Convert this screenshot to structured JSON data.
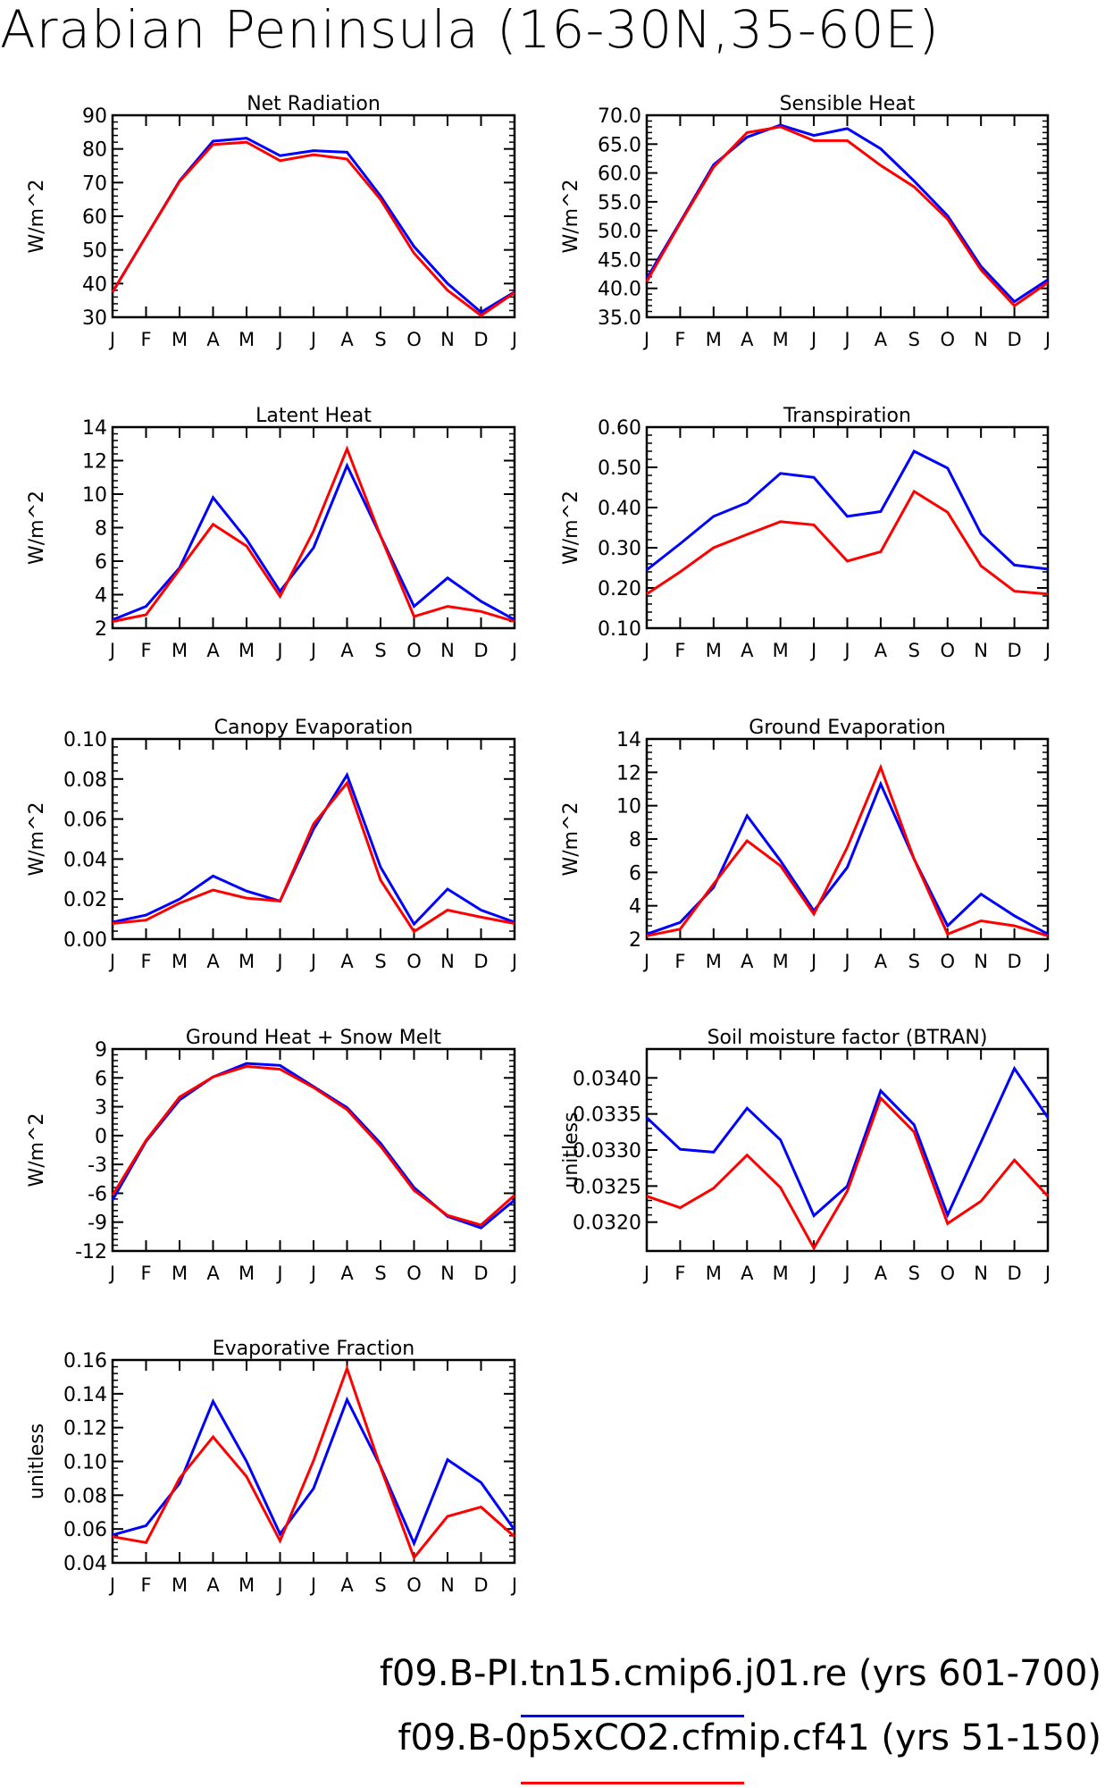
{
  "title": "Arabian Peninsula (16-30N,35-60E)",
  "month_labels": [
    "J",
    "F",
    "M",
    "A",
    "M",
    "J",
    "J",
    "A",
    "S",
    "O",
    "N",
    "D",
    "J"
  ],
  "legend": {
    "entries": [
      {
        "label": "f09.B-PI.tn15.cmip6.j01.re (yrs 601-700)",
        "color": "#0000ff"
      },
      {
        "label": "f09.B-0p5xCO2.cfmip.cf41 (yrs 51-150)",
        "color": "#ff0000"
      }
    ]
  },
  "chart_data": [
    {
      "type": "line",
      "title": "Net Radiation",
      "ylabel": "W/m^2",
      "ylim": [
        30,
        90
      ],
      "yticks": [
        30,
        40,
        50,
        60,
        70,
        80,
        90
      ],
      "ytick_labels": [
        "30",
        "40",
        "50",
        "60",
        "70",
        "80",
        "90"
      ],
      "x": [
        "J",
        "F",
        "M",
        "A",
        "M",
        "J",
        "J",
        "A",
        "S",
        "O",
        "N",
        "D",
        "J"
      ],
      "series": [
        {
          "name": "f09.B-PI.tn15.cmip6.j01.re",
          "color": "#0000ff",
          "values": [
            37.5,
            54,
            70.5,
            82.3,
            83.2,
            78,
            79.5,
            79,
            66,
            51,
            40,
            31.5,
            37.5
          ]
        },
        {
          "name": "f09.B-0p5xCO2.cfmip.cf41",
          "color": "#ff0000",
          "values": [
            37.5,
            54,
            70.3,
            81.3,
            82,
            76.5,
            78.3,
            77,
            65,
            49,
            38,
            30.5,
            37.3
          ]
        }
      ]
    },
    {
      "type": "line",
      "title": "Sensible Heat",
      "ylabel": "W/m^2",
      "ylim": [
        35,
        70
      ],
      "yticks": [
        35,
        40,
        45,
        50,
        55,
        60,
        65,
        70
      ],
      "ytick_labels": [
        "35.0",
        "40.0",
        "45.0",
        "50.0",
        "55.0",
        "60.0",
        "65.0",
        "70.0"
      ],
      "x": [
        "J",
        "F",
        "M",
        "A",
        "M",
        "J",
        "J",
        "A",
        "S",
        "O",
        "N",
        "D",
        "J"
      ],
      "series": [
        {
          "name": "f09.B-PI.tn15.cmip6.j01.re",
          "color": "#0000ff",
          "values": [
            41.7,
            51.5,
            61.4,
            66.2,
            68.3,
            66.5,
            67.7,
            64.2,
            58.6,
            52.6,
            43.8,
            37.7,
            41.5
          ]
        },
        {
          "name": "f09.B-0p5xCO2.cfmip.cf41",
          "color": "#ff0000",
          "values": [
            41.2,
            51.3,
            61,
            67,
            68,
            65.6,
            65.6,
            61.3,
            57.6,
            52,
            43.2,
            37,
            41
          ]
        }
      ]
    },
    {
      "type": "line",
      "title": "Latent Heat",
      "ylabel": "W/m^2",
      "ylim": [
        2,
        14
      ],
      "yticks": [
        2,
        4,
        6,
        8,
        10,
        12,
        14
      ],
      "ytick_labels": [
        "2",
        "4",
        "6",
        "8",
        "10",
        "12",
        "14"
      ],
      "x": [
        "J",
        "F",
        "M",
        "A",
        "M",
        "J",
        "J",
        "A",
        "S",
        "O",
        "N",
        "D",
        "J"
      ],
      "series": [
        {
          "name": "f09.B-PI.tn15.cmip6.j01.re",
          "color": "#0000ff",
          "values": [
            2.5,
            3.3,
            5.6,
            9.8,
            7.3,
            4.2,
            6.8,
            11.7,
            7.5,
            3.3,
            5,
            3.6,
            2.5
          ]
        },
        {
          "name": "f09.B-0p5xCO2.cfmip.cf41",
          "color": "#ff0000",
          "values": [
            2.4,
            2.8,
            5.5,
            8.2,
            6.9,
            3.9,
            7.8,
            12.7,
            7.5,
            2.7,
            3.3,
            3,
            2.4
          ]
        }
      ]
    },
    {
      "type": "line",
      "title": "Transpiration",
      "ylabel": "W/m^2",
      "ylim": [
        0.1,
        0.6
      ],
      "yticks": [
        0.1,
        0.2,
        0.3,
        0.4,
        0.5,
        0.6
      ],
      "ytick_labels": [
        "0.10",
        "0.20",
        "0.30",
        "0.40",
        "0.50",
        "0.60"
      ],
      "x": [
        "J",
        "F",
        "M",
        "A",
        "M",
        "J",
        "J",
        "A",
        "S",
        "O",
        "N",
        "D",
        "J"
      ],
      "series": [
        {
          "name": "f09.B-PI.tn15.cmip6.j01.re",
          "color": "#0000ff",
          "values": [
            0.245,
            0.31,
            0.378,
            0.412,
            0.485,
            0.475,
            0.378,
            0.39,
            0.54,
            0.498,
            0.335,
            0.257,
            0.247
          ]
        },
        {
          "name": "f09.B-0p5xCO2.cfmip.cf41",
          "color": "#ff0000",
          "values": [
            0.185,
            0.24,
            0.3,
            0.333,
            0.365,
            0.357,
            0.267,
            0.29,
            0.44,
            0.388,
            0.255,
            0.192,
            0.185
          ]
        }
      ]
    },
    {
      "type": "line",
      "title": "Canopy Evaporation",
      "ylabel": "W/m^2",
      "ylim": [
        0,
        0.1
      ],
      "yticks": [
        0,
        0.02,
        0.04,
        0.06,
        0.08,
        0.1
      ],
      "ytick_labels": [
        "0.00",
        "0.02",
        "0.04",
        "0.06",
        "0.08",
        "0.10"
      ],
      "x": [
        "J",
        "F",
        "M",
        "A",
        "M",
        "J",
        "J",
        "A",
        "S",
        "O",
        "N",
        "D",
        "J"
      ],
      "series": [
        {
          "name": "f09.B-PI.tn15.cmip6.j01.re",
          "color": "#0000ff",
          "values": [
            0.0085,
            0.012,
            0.02,
            0.0315,
            0.024,
            0.019,
            0.055,
            0.082,
            0.036,
            0.0075,
            0.025,
            0.0145,
            0.0085
          ]
        },
        {
          "name": "f09.B-0p5xCO2.cfmip.cf41",
          "color": "#ff0000",
          "values": [
            0.0078,
            0.0095,
            0.018,
            0.0245,
            0.0205,
            0.019,
            0.0575,
            0.078,
            0.0295,
            0.0038,
            0.0145,
            0.011,
            0.0078
          ]
        }
      ]
    },
    {
      "type": "line",
      "title": "Ground Evaporation",
      "ylabel": "W/m^2",
      "ylim": [
        2,
        14
      ],
      "yticks": [
        2,
        4,
        6,
        8,
        10,
        12,
        14
      ],
      "ytick_labels": [
        "2",
        "4",
        "6",
        "8",
        "10",
        "12",
        "14"
      ],
      "x": [
        "J",
        "F",
        "M",
        "A",
        "M",
        "J",
        "J",
        "A",
        "S",
        "O",
        "N",
        "D",
        "J"
      ],
      "series": [
        {
          "name": "f09.B-PI.tn15.cmip6.j01.re",
          "color": "#0000ff",
          "values": [
            2.3,
            3,
            5.1,
            9.4,
            6.7,
            3.7,
            6.3,
            11.3,
            6.8,
            2.8,
            4.7,
            3.4,
            2.3
          ]
        },
        {
          "name": "f09.B-0p5xCO2.cfmip.cf41",
          "color": "#ff0000",
          "values": [
            2.2,
            2.6,
            5.3,
            7.9,
            6.4,
            3.5,
            7.5,
            12.3,
            6.8,
            2.3,
            3.1,
            2.8,
            2.2
          ]
        }
      ]
    },
    {
      "type": "line",
      "title": "Ground Heat + Snow Melt",
      "ylabel": "W/m^2",
      "ylim": [
        -12,
        9
      ],
      "yticks": [
        -12,
        -9,
        -6,
        -3,
        0,
        3,
        6,
        9
      ],
      "ytick_labels": [
        "-12",
        "-9",
        "-6",
        "-3",
        "0",
        "3",
        "6",
        "9"
      ],
      "x": [
        "J",
        "F",
        "M",
        "A",
        "M",
        "J",
        "J",
        "A",
        "S",
        "O",
        "N",
        "D",
        "J"
      ],
      "series": [
        {
          "name": "f09.B-PI.tn15.cmip6.j01.re",
          "color": "#0000ff",
          "values": [
            -6.7,
            -0.6,
            3.7,
            6.1,
            7.5,
            7.3,
            5.1,
            2.9,
            -0.8,
            -5.4,
            -8.4,
            -9.6,
            -6.7
          ]
        },
        {
          "name": "f09.B-0p5xCO2.cfmip.cf41",
          "color": "#ff0000",
          "values": [
            -6.2,
            -0.5,
            4,
            6.1,
            7.2,
            6.9,
            5,
            2.7,
            -1.1,
            -5.7,
            -8.3,
            -9.3,
            -6.2
          ]
        }
      ]
    },
    {
      "type": "line",
      "title": "Soil moisture factor (BTRAN)",
      "ylabel": "unitless",
      "ylim": [
        0.0316,
        0.0344
      ],
      "yticks": [
        0.032,
        0.0325,
        0.033,
        0.0335,
        0.034
      ],
      "ytick_labels": [
        "0.0320",
        "0.0325",
        "0.0330",
        "0.0335",
        "0.0340"
      ],
      "x": [
        "J",
        "F",
        "M",
        "A",
        "M",
        "J",
        "J",
        "A",
        "S",
        "O",
        "N",
        "D",
        "J"
      ],
      "series": [
        {
          "name": "f09.B-PI.tn15.cmip6.j01.re",
          "color": "#0000ff",
          "values": [
            0.03345,
            0.03301,
            0.03297,
            0.03358,
            0.03314,
            0.03209,
            0.0325,
            0.03382,
            0.03335,
            0.0321,
            0.03311,
            0.03413,
            0.03345
          ]
        },
        {
          "name": "f09.B-0p5xCO2.cfmip.cf41",
          "color": "#ff0000",
          "values": [
            0.03236,
            0.0322,
            0.03247,
            0.03293,
            0.03248,
            0.03164,
            0.03243,
            0.03372,
            0.03325,
            0.03198,
            0.03229,
            0.03286,
            0.03236
          ]
        }
      ]
    },
    {
      "type": "line",
      "title": "Evaporative Fraction",
      "ylabel": "unitless",
      "ylim": [
        0.04,
        0.16
      ],
      "yticks": [
        0.04,
        0.06,
        0.08,
        0.1,
        0.12,
        0.14,
        0.16
      ],
      "ytick_labels": [
        "0.04",
        "0.06",
        "0.08",
        "0.10",
        "0.12",
        "0.14",
        "0.16"
      ],
      "x": [
        "J",
        "F",
        "M",
        "A",
        "M",
        "J",
        "J",
        "A",
        "S",
        "O",
        "N",
        "D",
        "J"
      ],
      "series": [
        {
          "name": "f09.B-PI.tn15.cmip6.j01.re",
          "color": "#0000ff",
          "values": [
            0.0565,
            0.062,
            0.087,
            0.1355,
            0.1,
            0.057,
            0.084,
            0.1365,
            0.097,
            0.0515,
            0.101,
            0.0875,
            0.0595
          ]
        },
        {
          "name": "f09.B-0p5xCO2.cfmip.cf41",
          "color": "#ff0000",
          "values": [
            0.0555,
            0.052,
            0.09,
            0.1145,
            0.091,
            0.053,
            0.1005,
            0.155,
            0.0965,
            0.043,
            0.0675,
            0.073,
            0.0555
          ]
        }
      ]
    }
  ]
}
